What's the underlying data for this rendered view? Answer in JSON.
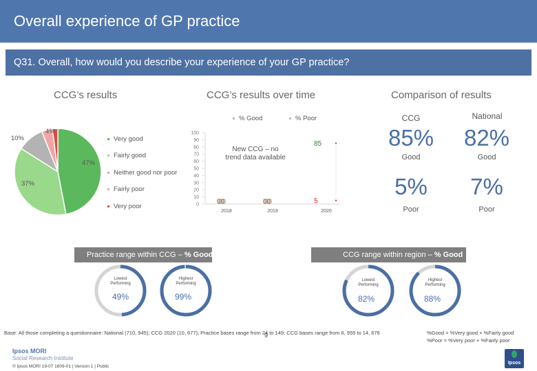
{
  "header": {
    "title": "Overall experience of GP practice"
  },
  "question": {
    "text": "Q31. Overall, how would you describe your experience of your GP practice?"
  },
  "sections": {
    "ccg_results": "CCG’s results",
    "over_time": "CCG’s results over time",
    "comparison": "Comparison of results"
  },
  "pie": {
    "slices": [
      {
        "label": "Very good",
        "value": 47,
        "color": "#5cb85c",
        "text": "47%"
      },
      {
        "label": "Fairly good",
        "value": 37,
        "color": "#9ad88c",
        "text": "37%"
      },
      {
        "label": "Neither good nor poor",
        "value": 10,
        "color": "#b3b3b3",
        "text": "10%"
      },
      {
        "label": "Fairly poor",
        "value": 4,
        "color": "#f2a3a3",
        "text": "4%"
      },
      {
        "label": "Very poor",
        "value": 2,
        "color": "#e04848",
        "text": ""
      }
    ]
  },
  "chart_data": {
    "type": "line",
    "legend": [
      "% Good",
      "% Poor"
    ],
    "x": [
      "2018",
      "2019",
      "2020"
    ],
    "series": [
      {
        "name": "% Good",
        "values": [
          null,
          null,
          85
        ],
        "labels": [
          "",
          "",
          "85"
        ],
        "color": "#2e7d32"
      },
      {
        "name": "% Poor",
        "values": [
          null,
          null,
          5
        ],
        "labels": [
          "",
          "",
          "5"
        ],
        "color": "#c62828"
      }
    ],
    "ylim": [
      0,
      100
    ],
    "yticks": [
      "0",
      "10",
      "20",
      "30",
      "40",
      "50",
      "60",
      "70",
      "80",
      "90",
      "100"
    ],
    "annotation": "New CCG – no trend data available",
    "placeholder_2018": "00",
    "placeholder_2019": "00"
  },
  "comparison": {
    "ccg_label": "CCG",
    "national_label": "National",
    "ccg_good": "85%",
    "national_good": "82%",
    "good_label": "Good",
    "ccg_poor": "5%",
    "national_poor": "7%",
    "poor_label": "Poor"
  },
  "practice_range": {
    "title_prefix": "Practice range within CCG – ",
    "title_bold": "% Good",
    "lowest_label": "Lowest\nPerforming",
    "highest_label": "Highest\nPerforming",
    "lowest_value": "49%",
    "highest_value": "99%",
    "lowest_fraction": 0.49,
    "highest_fraction": 0.99
  },
  "ccg_range": {
    "title_prefix": "CCG range within region – ",
    "title_bold": "% Good",
    "lowest_label": "Lowest\nPerforming",
    "highest_label": "Highest\nPerforming",
    "lowest_value": "82%",
    "highest_value": "88%",
    "lowest_fraction": 0.82,
    "highest_fraction": 0.88
  },
  "footer": {
    "base": "Base: All those completing a questionnaire: National (710, 945); CCG 2020 (10, 677); Practice bases range from 24 to 149; CCG bases range from 6, 955 to 14, 676",
    "def_good": "%Good = %Very good + %Fairly good",
    "def_poor": "%Poor = %Very poor + %Fairly poor",
    "page_number": "9",
    "brand_line1": "Ipsos MORI",
    "brand_line2": "Social Research Institute",
    "copyright": "© Ipsos MORI     19-07 1809-01 | Version 1 | Public",
    "logo_text": "Ipsos"
  }
}
